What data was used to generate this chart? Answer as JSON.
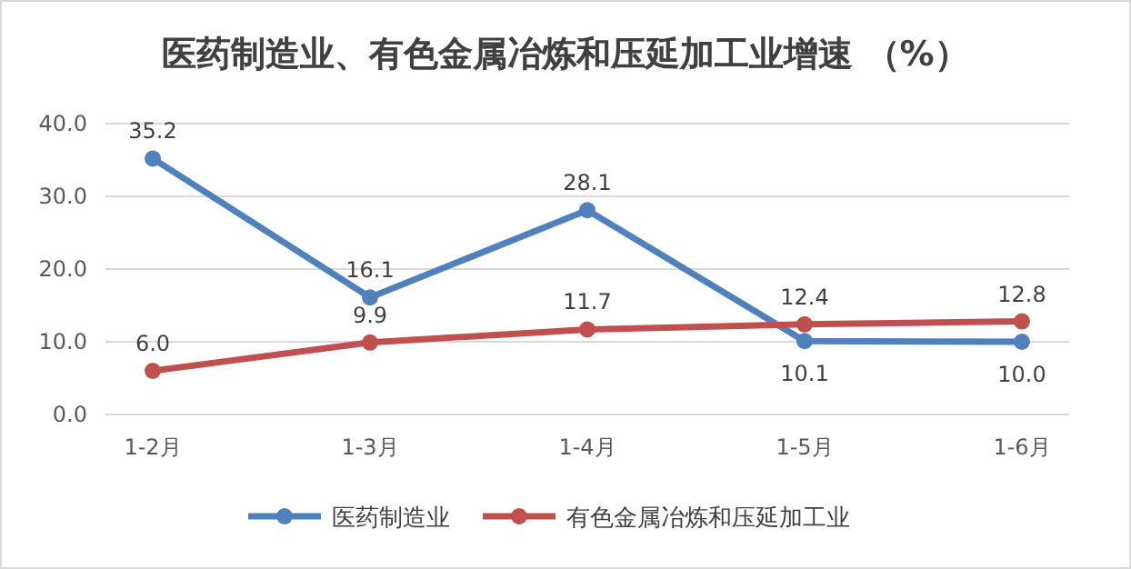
{
  "chart_data": {
    "type": "line",
    "title": "医药制造业、有色金属冶炼和压延加工业增速 （%）",
    "categories": [
      "1-2月",
      "1-3月",
      "1-4月",
      "1-5月",
      "1-6月"
    ],
    "series": [
      {
        "name": "医药制造业",
        "color": "#4f81bd",
        "values": [
          35.2,
          16.1,
          28.1,
          10.1,
          10.0
        ],
        "value_labels": [
          "35.2",
          "16.1",
          "28.1",
          "10.1",
          "10.0"
        ]
      },
      {
        "name": "有色金属冶炼和压延加工业",
        "color": "#c0504d",
        "values": [
          6.0,
          9.9,
          11.7,
          12.4,
          12.8
        ],
        "value_labels": [
          "6.0",
          "9.9",
          "11.7",
          "12.4",
          "12.8"
        ]
      }
    ],
    "ylim": [
      0,
      40
    ],
    "yticks": [
      {
        "value": 0,
        "label": "0.0"
      },
      {
        "value": 10,
        "label": "10.0"
      },
      {
        "value": 20,
        "label": "20.0"
      },
      {
        "value": 30,
        "label": "30.0"
      },
      {
        "value": 40,
        "label": "40.0"
      }
    ],
    "grid": "y",
    "legend": "bottom",
    "marker": "circle",
    "line_style": "solid"
  }
}
